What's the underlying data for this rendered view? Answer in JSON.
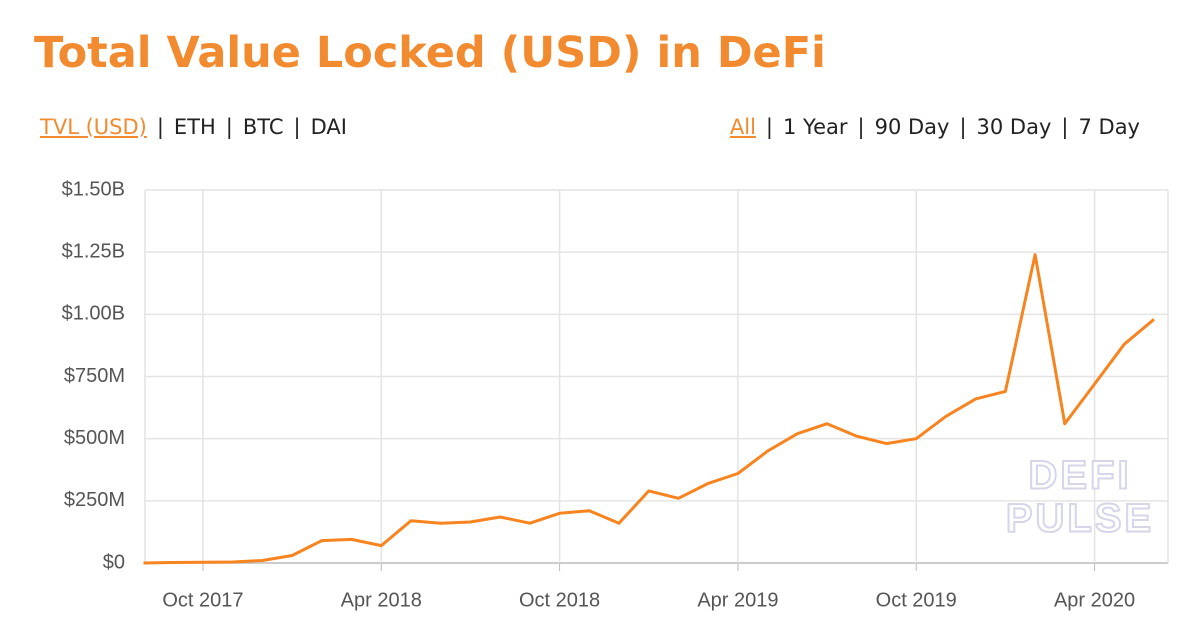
{
  "chart_data": {
    "type": "line",
    "title": "Total Value Locked (USD) in DeFi",
    "x": [
      "2017-08",
      "2017-09",
      "2017-10",
      "2017-11",
      "2017-12",
      "2018-01",
      "2018-02",
      "2018-03",
      "2018-04",
      "2018-05",
      "2018-06",
      "2018-07",
      "2018-08",
      "2018-09",
      "2018-10",
      "2018-11",
      "2018-12",
      "2019-01",
      "2019-02",
      "2019-03",
      "2019-04",
      "2019-05",
      "2019-06",
      "2019-07",
      "2019-08",
      "2019-09",
      "2019-10",
      "2019-11",
      "2019-12",
      "2020-01",
      "2020-02",
      "2020-03",
      "2020-04",
      "2020-05",
      "2020-06"
    ],
    "values": [
      0,
      2000000,
      3000000,
      4000000,
      10000000,
      30000000,
      90000000,
      95000000,
      70000000,
      170000000,
      160000000,
      165000000,
      185000000,
      160000000,
      200000000,
      210000000,
      160000000,
      290000000,
      260000000,
      320000000,
      360000000,
      450000000,
      520000000,
      560000000,
      510000000,
      480000000,
      500000000,
      590000000,
      660000000,
      690000000,
      1240000000,
      560000000,
      720000000,
      880000000,
      980000000
    ],
    "color": "#f7841f",
    "xlim": [
      "2017-08",
      "2020-06"
    ],
    "xticks": [
      {
        "value": "2017-10",
        "label": "Oct 2017"
      },
      {
        "value": "2018-04",
        "label": "Apr 2018"
      },
      {
        "value": "2018-10",
        "label": "Oct 2018"
      },
      {
        "value": "2019-04",
        "label": "Apr 2019"
      },
      {
        "value": "2019-10",
        "label": "Oct 2019"
      },
      {
        "value": "2020-04",
        "label": "Apr 2020"
      }
    ],
    "ylim": [
      0,
      1500000000
    ],
    "yticks": [
      {
        "value": 0,
        "label": "$0"
      },
      {
        "value": 250000000,
        "label": "$250M"
      },
      {
        "value": 500000000,
        "label": "$500M"
      },
      {
        "value": 750000000,
        "label": "$750M"
      },
      {
        "value": 1000000000,
        "label": "$1.00B"
      },
      {
        "value": 1250000000,
        "label": "$1.25B"
      },
      {
        "value": 1500000000,
        "label": "$1.50B"
      }
    ],
    "grid": true,
    "watermark": [
      "DEFI",
      "PULSE"
    ]
  },
  "controls": {
    "metrics": [
      "TVL (USD)",
      "ETH",
      "BTC",
      "DAI"
    ],
    "ranges": [
      "All",
      "1 Year",
      "90 Day",
      "30 Day",
      "7 Day"
    ]
  }
}
